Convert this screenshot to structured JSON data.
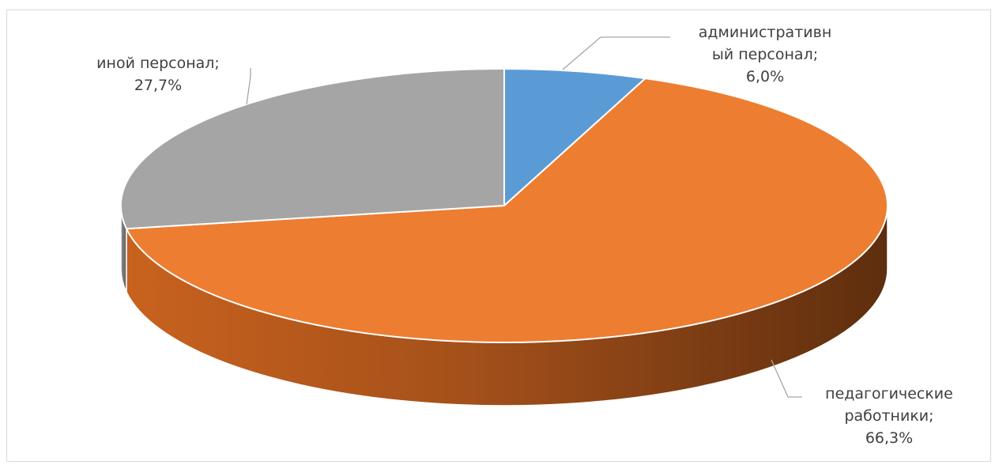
{
  "chart_data": {
    "type": "pie",
    "style": "3d",
    "title": "",
    "categories": [
      "административный персонал",
      "педагогические работники",
      "иной персонал"
    ],
    "values": [
      6.0,
      66.3,
      27.7
    ],
    "colors": [
      "#5B9BD5",
      "#ED7D31",
      "#A5A5A5"
    ],
    "side_colors": [
      "#2E5F8E",
      "#7A3E12",
      "#666666"
    ],
    "labels": [
      {
        "lines": [
          "административн",
          "ый персонал;",
          "6,0%"
        ]
      },
      {
        "lines": [
          "педагогические",
          "работники;",
          "66,3%"
        ]
      },
      {
        "lines": [
          "иной персонал;",
          "27,7%"
        ]
      }
    ],
    "legend": "none",
    "grid": false
  }
}
